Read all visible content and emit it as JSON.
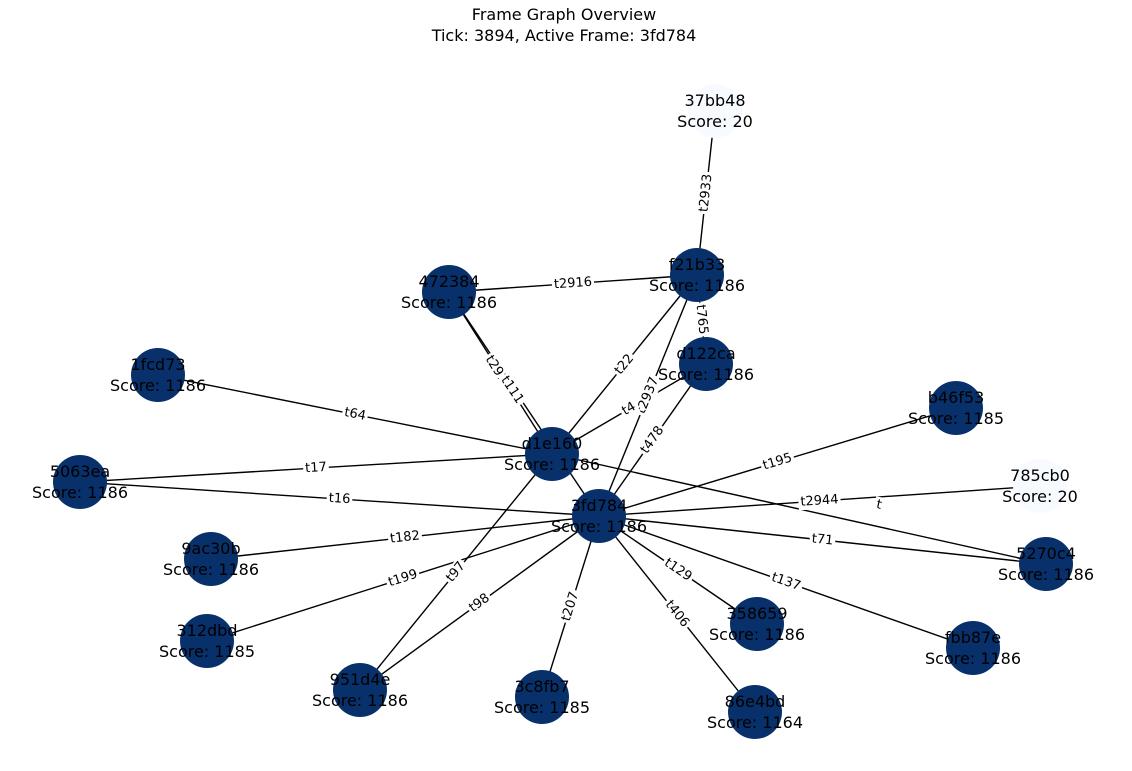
{
  "title": {
    "line1": "Frame Graph Overview",
    "line2": "Tick: 3894, Active Frame: 3fd784"
  },
  "colors": {
    "node_dark": "#08306b",
    "node_light": "#f7fbff",
    "edge": "#000000"
  },
  "nodes": [
    {
      "id": "3fd784",
      "score": "Score: 1186",
      "shade": "dark"
    },
    {
      "id": "d1e160",
      "score": "Score: 1186",
      "shade": "dark"
    },
    {
      "id": "f21b33",
      "score": "Score: 1186",
      "shade": "dark"
    },
    {
      "id": "37bb48",
      "score": "Score: 20",
      "shade": "light"
    },
    {
      "id": "472384",
      "score": "Score: 1186",
      "shade": "dark"
    },
    {
      "id": "d122ca",
      "score": "Score: 1186",
      "shade": "dark"
    },
    {
      "id": "1fcd73",
      "score": "Score: 1186",
      "shade": "dark"
    },
    {
      "id": "5063ea",
      "score": "Score: 1186",
      "shade": "dark"
    },
    {
      "id": "b46f53",
      "score": "Score: 1185",
      "shade": "dark"
    },
    {
      "id": "785cb0",
      "score": "Score: 20",
      "shade": "light"
    },
    {
      "id": "5270c4",
      "score": "Score: 1186",
      "shade": "dark"
    },
    {
      "id": "9ac30b",
      "score": "Score: 1186",
      "shade": "dark"
    },
    {
      "id": "312dbd",
      "score": "Score: 1185",
      "shade": "dark"
    },
    {
      "id": "951d4e",
      "score": "Score: 1186",
      "shade": "dark"
    },
    {
      "id": "3c8fb7",
      "score": "Score: 1185",
      "shade": "dark"
    },
    {
      "id": "86e4bd",
      "score": "Score: 1164",
      "shade": "dark"
    },
    {
      "id": "358659",
      "score": "Score: 1186",
      "shade": "dark"
    },
    {
      "id": "fbb87e",
      "score": "Score: 1186",
      "shade": "dark"
    }
  ],
  "edges": [
    {
      "source": "f21b33",
      "target": "37bb48",
      "label": "t2933"
    },
    {
      "source": "472384",
      "target": "f21b33",
      "label": "t2916"
    },
    {
      "source": "f21b33",
      "target": "d122ca",
      "label": "t765"
    },
    {
      "source": "f21b33",
      "target": "d1e160",
      "label": "t22"
    },
    {
      "source": "f21b33",
      "target": "3fd784",
      "label": "t2937"
    },
    {
      "source": "472384",
      "target": "d1e160",
      "label": "t2915"
    },
    {
      "source": "472384",
      "target": "3fd784",
      "label": "t111"
    },
    {
      "source": "d122ca",
      "target": "d1e160",
      "label": "t4"
    },
    {
      "source": "d122ca",
      "target": "3fd784",
      "label": "t478"
    },
    {
      "source": "1fcd73",
      "target": "d1e160",
      "label": "t64"
    },
    {
      "source": "5063ea",
      "target": "d1e160",
      "label": "t17"
    },
    {
      "source": "5063ea",
      "target": "3fd784",
      "label": "t16"
    },
    {
      "source": "d1e160",
      "target": "5270c4",
      "label": "t"
    },
    {
      "source": "d1e160",
      "target": "951d4e",
      "label": "t97"
    },
    {
      "source": "3fd784",
      "target": "b46f53",
      "label": "t195"
    },
    {
      "source": "3fd784",
      "target": "785cb0",
      "label": "t2944"
    },
    {
      "source": "3fd784",
      "target": "5270c4",
      "label": "t71"
    },
    {
      "source": "3fd784",
      "target": "9ac30b",
      "label": "t182"
    },
    {
      "source": "3fd784",
      "target": "312dbd",
      "label": "t199"
    },
    {
      "source": "3fd784",
      "target": "951d4e",
      "label": "t98"
    },
    {
      "source": "3fd784",
      "target": "3c8fb7",
      "label": "t207"
    },
    {
      "source": "3fd784",
      "target": "86e4bd",
      "label": "t406"
    },
    {
      "source": "3fd784",
      "target": "358659",
      "label": "t129"
    },
    {
      "source": "3fd784",
      "target": "fbb87e",
      "label": "t137"
    }
  ]
}
